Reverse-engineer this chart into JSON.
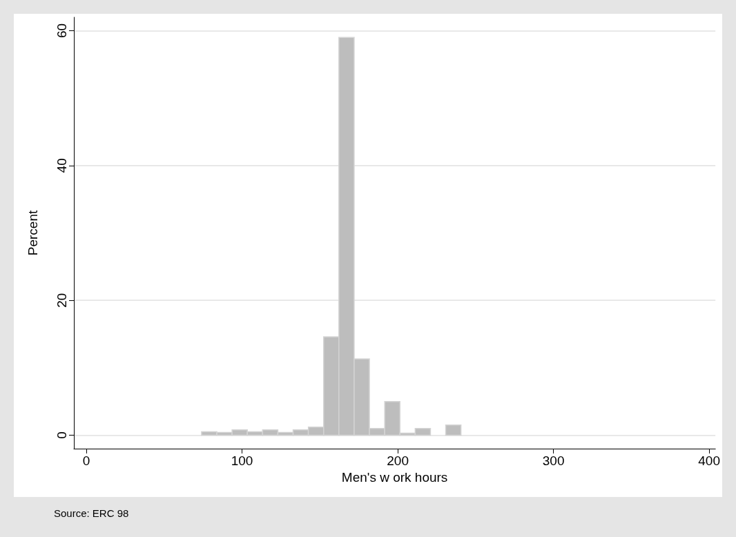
{
  "chart_data": {
    "type": "histogram",
    "xlabel": "Men's w ork hours",
    "ylabel": "Percent",
    "bins": [
      74,
      83.8,
      93.6,
      103.4,
      113.2,
      123,
      132.8,
      142.6,
      152.4,
      162.2,
      172,
      181.8,
      191.6,
      201.4,
      211.2,
      221,
      230.8,
      240.6
    ],
    "values": [
      0.5,
      0.4,
      0.8,
      0.5,
      0.8,
      0.4,
      0.8,
      1.2,
      14.6,
      59,
      11.3,
      1,
      5,
      0.3,
      1,
      0,
      1.5
    ],
    "color": "#bdbdbd",
    "xlim": [
      -8,
      404
    ],
    "ylim": [
      -2,
      62
    ],
    "xticks": [
      0,
      100,
      200,
      300,
      400
    ],
    "yticks": [
      0,
      20,
      40,
      60
    ],
    "grid": "y",
    "annotations": [
      "Source: ERC 98"
    ]
  }
}
